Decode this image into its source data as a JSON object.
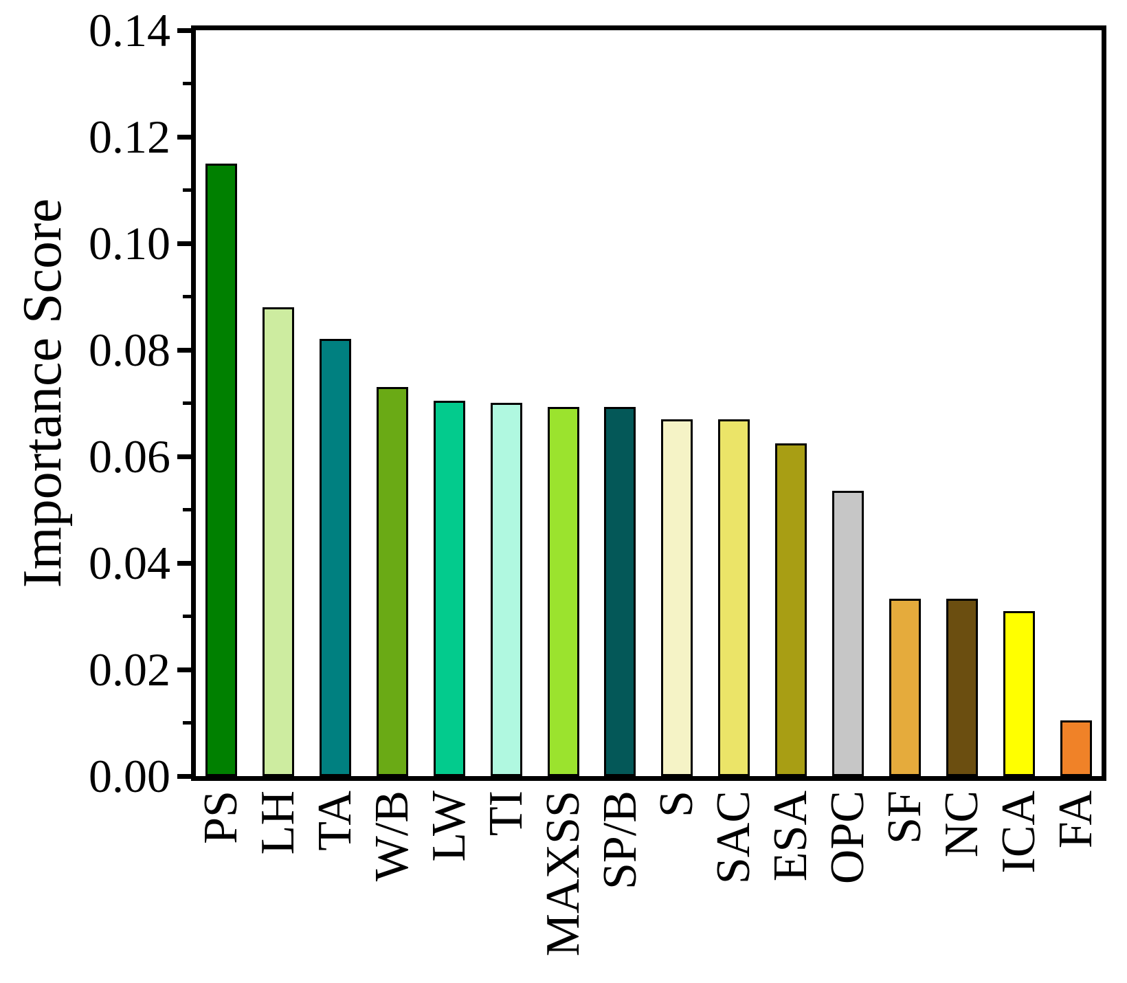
{
  "figure": {
    "background": "#ffffff",
    "axis_color": "#000000",
    "text_color": "#000000"
  },
  "chart_data": {
    "type": "bar",
    "title": "",
    "xlabel": "",
    "ylabel": "Importance Score",
    "ylim": [
      0,
      0.14
    ],
    "grid": false,
    "legend": null,
    "categories": [
      "PS",
      "LH",
      "TA",
      "W/B",
      "LW",
      "TI",
      "MAXSS",
      "SP/B",
      "S",
      "SAC",
      "ESA",
      "OPC",
      "SF",
      "NC",
      "ICA",
      "FA"
    ],
    "values": [
      0.115,
      0.088,
      0.082,
      0.073,
      0.0705,
      0.07,
      0.0693,
      0.0693,
      0.067,
      0.067,
      0.0625,
      0.0535,
      0.0333,
      0.0333,
      0.031,
      0.0105
    ],
    "bar_colors": [
      "#008000",
      "#cdeca0",
      "#008080",
      "#6aaa15",
      "#03cb8d",
      "#b0f8e0",
      "#9be32e",
      "#045858",
      "#f5f3c6",
      "#ebe468",
      "#a89e14",
      "#c6c6c6",
      "#e5ab3c",
      "#6b4e10",
      "#ffff00",
      "#f08228"
    ],
    "bar_edge_color": "#000000",
    "ytick_labels_major": [
      "0.14",
      "0.12",
      "0.10",
      "0.08",
      "0.06",
      "0.04",
      "0.02",
      "0.00"
    ],
    "ytick_values_major": [
      0.14,
      0.12,
      0.1,
      0.08,
      0.06,
      0.04,
      0.02,
      0.0
    ],
    "ytick_values_minor": [
      0.13,
      0.11,
      0.09,
      0.07,
      0.05,
      0.03,
      0.01
    ]
  }
}
